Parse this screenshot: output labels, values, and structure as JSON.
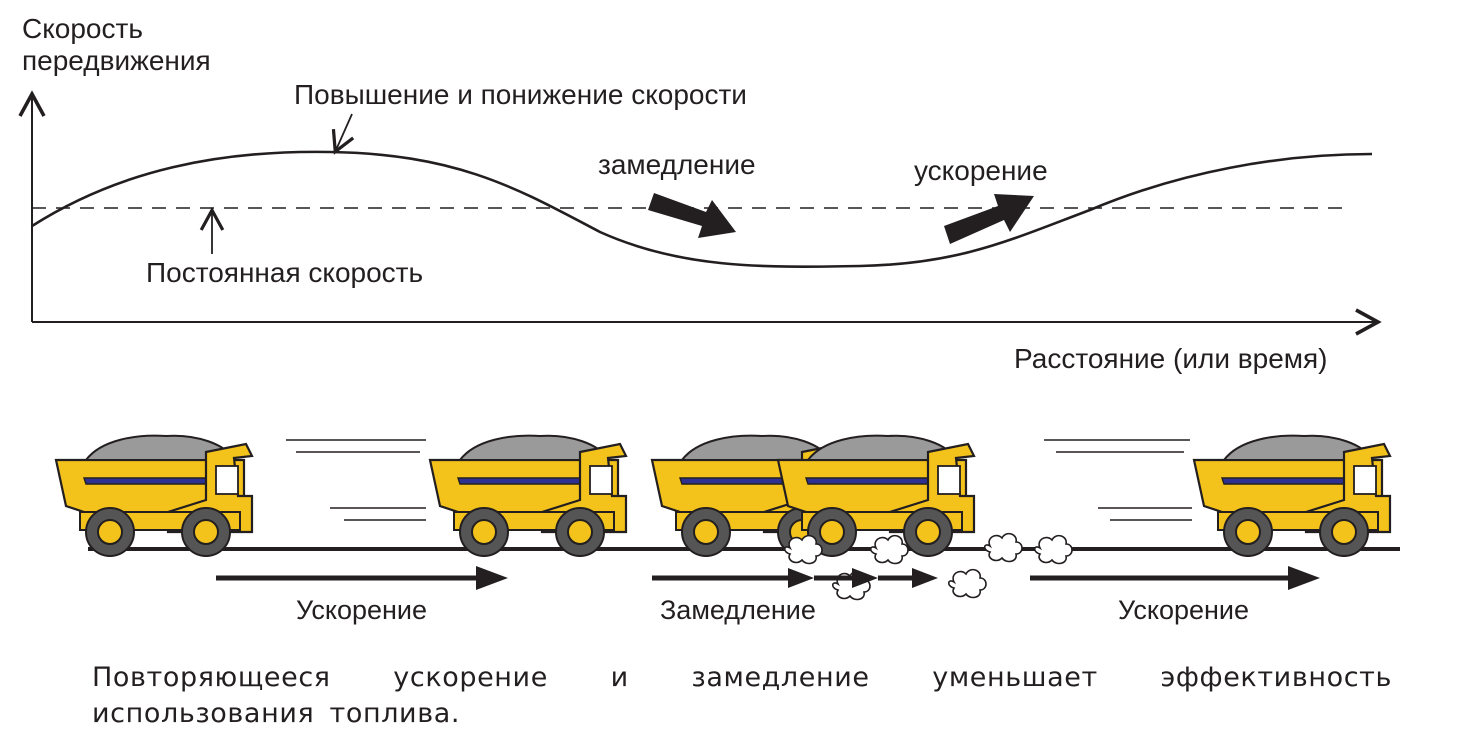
{
  "graph": {
    "y_axis_label_line1": "Скорость",
    "y_axis_label_line2": "передвижения",
    "x_axis_label": "Расстояние (или время)",
    "curve_label": "Повышение и понижение скорости",
    "constant_label": "Постоянная скорость",
    "decel_label": "замедление",
    "accel_label": "ускорение"
  },
  "trucks_row": {
    "phase_labels": [
      "Ускорение",
      "Замедление",
      "Ускорение"
    ]
  },
  "caption": "Повторяющееся ускорение и замедление уменьшает эффективность использования топлива.",
  "colors": {
    "truck_body": "#f3c21b",
    "truck_stripe": "#2e3192",
    "ink": "#231f20",
    "load": "#9a9a9a"
  }
}
